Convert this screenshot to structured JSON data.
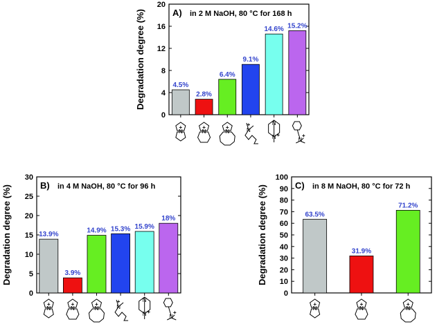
{
  "chart_data": [
    {
      "type": "bar",
      "panel": "A)",
      "title": "in 2 M NaOH, 80 °C for 168 h",
      "ylabel": "Degradation degree (%)",
      "xlabel": "",
      "ylim": [
        0,
        20
      ],
      "yticks": [
        0,
        4,
        8,
        12,
        16,
        20
      ],
      "categories": [
        "pyrrolidinium",
        "piperidinium",
        "azepanium",
        "quaternary ammonium (long chain)",
        "DABCO-based",
        "benzyltrimethylammonium"
      ],
      "icons": [
        "spiro-pyrrolidinium-icon",
        "spiro-piperidinium-icon",
        "spiro-azepanium-icon",
        "alkyl-ammonium-icon",
        "dabco-icon",
        "benzyl-trimethylammonium-icon"
      ],
      "values": [
        4.5,
        2.8,
        6.4,
        9.1,
        14.6,
        15.2
      ],
      "labels": [
        "4.5%",
        "2.8%",
        "6.4%",
        "9.1%",
        "14.6%",
        "15.2%"
      ],
      "colors": [
        "#c0c8c8",
        "#ee1111",
        "#66ee22",
        "#2244ee",
        "#77ffee",
        "#bb66ee"
      ],
      "label_color": "#3344cc"
    },
    {
      "type": "bar",
      "panel": "B)",
      "title": "in 4 M NaOH, 80 °C for 96 h",
      "ylabel": "Degradation degree (%)",
      "xlabel": "",
      "ylim": [
        0,
        30
      ],
      "yticks": [
        0,
        5,
        10,
        15,
        20,
        25,
        30
      ],
      "categories": [
        "pyrrolidinium",
        "piperidinium",
        "azepanium",
        "quaternary ammonium (long chain)",
        "DABCO-based",
        "benzyltrimethylammonium"
      ],
      "icons": [
        "spiro-pyrrolidinium-icon",
        "spiro-piperidinium-icon",
        "spiro-azepanium-icon",
        "alkyl-ammonium-icon",
        "dabco-icon",
        "benzyl-trimethylammonium-icon"
      ],
      "values": [
        13.9,
        3.9,
        14.9,
        15.3,
        15.9,
        18
      ],
      "labels": [
        "13.9%",
        "3.9%",
        "14.9%",
        "15.3%",
        "15.9%",
        "18%"
      ],
      "colors": [
        "#c0c8c8",
        "#ee1111",
        "#66ee22",
        "#2244ee",
        "#77ffee",
        "#bb66ee"
      ],
      "label_color": "#3344cc"
    },
    {
      "type": "bar",
      "panel": "C)",
      "title": "in 8 M NaOH, 80 °C for 72 h",
      "ylabel": "Degradation degree (%)",
      "xlabel": "",
      "ylim": [
        0,
        100
      ],
      "yticks": [
        0,
        10,
        20,
        30,
        40,
        50,
        60,
        70,
        80,
        90,
        100
      ],
      "categories": [
        "pyrrolidinium",
        "piperidinium",
        "azepanium"
      ],
      "icons": [
        "spiro-pyrrolidinium-icon",
        "spiro-piperidinium-icon",
        "spiro-azepanium-icon"
      ],
      "values": [
        63.5,
        31.9,
        71.2
      ],
      "labels": [
        "63.5%",
        "31.9%",
        "71.2%"
      ],
      "colors": [
        "#c0c8c8",
        "#ee1111",
        "#66ee22"
      ],
      "label_color": "#3344cc"
    }
  ]
}
